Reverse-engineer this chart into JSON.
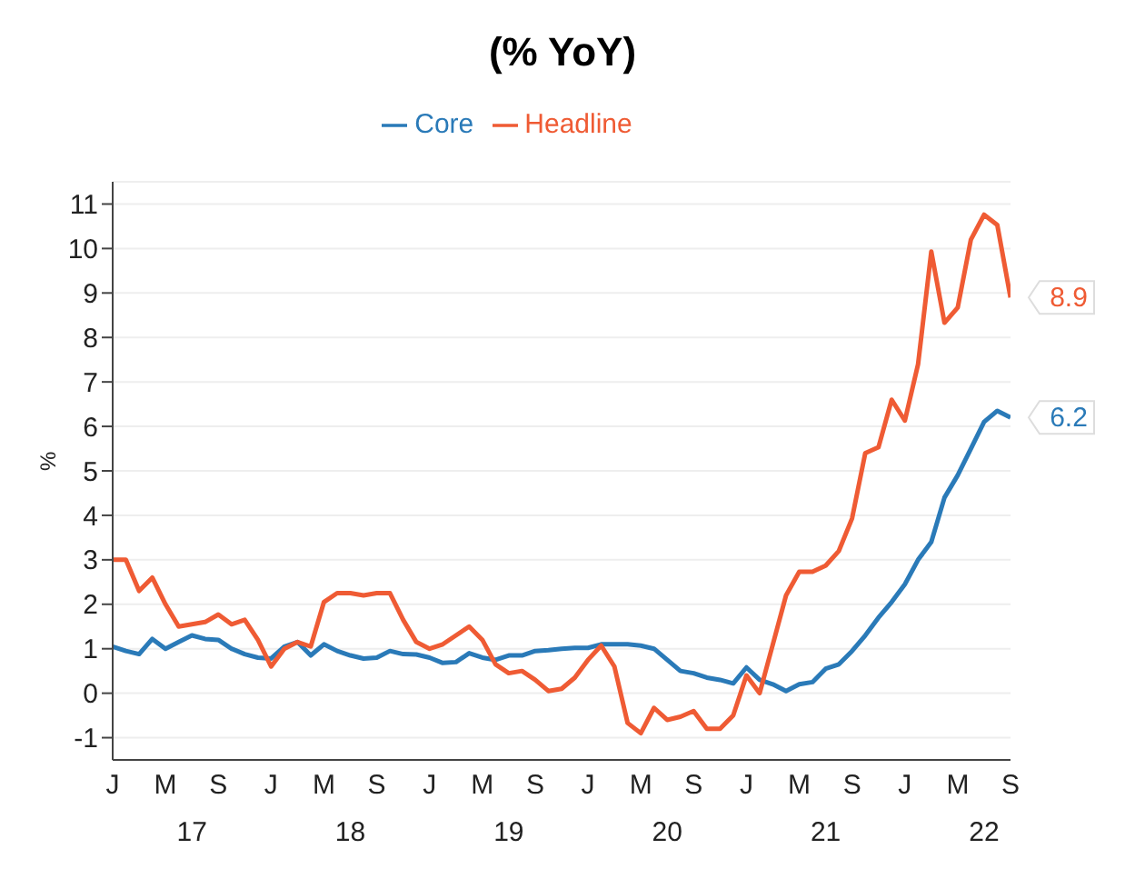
{
  "chart_data": {
    "type": "line",
    "title": "(% YoY)",
    "ylabel": "%",
    "categories": [
      "J",
      null,
      null,
      null,
      "M",
      null,
      null,
      null,
      "S",
      null,
      null,
      null,
      "J",
      null,
      null,
      null,
      "M",
      null,
      null,
      null,
      "S",
      null,
      null,
      null,
      "J",
      null,
      null,
      null,
      "M",
      null,
      null,
      null,
      "S",
      null,
      null,
      null,
      "J",
      null,
      null,
      null,
      "M",
      null,
      null,
      null,
      "S",
      null,
      null,
      null,
      "J",
      null,
      null,
      null,
      "M",
      null,
      null,
      null,
      "S",
      null,
      null,
      null,
      "J",
      null,
      null,
      null,
      "M",
      null,
      null,
      null,
      "S"
    ],
    "series": [
      {
        "name": "Core",
        "color": "#2a7ab8",
        "values": [
          1.05,
          0.95,
          0.88,
          1.22,
          1.0,
          1.15,
          1.3,
          1.22,
          1.2,
          1.0,
          0.88,
          0.8,
          0.78,
          1.05,
          1.15,
          0.85,
          1.1,
          0.95,
          0.85,
          0.78,
          0.8,
          0.95,
          0.88,
          0.87,
          0.8,
          0.68,
          0.7,
          0.9,
          0.8,
          0.75,
          0.85,
          0.85,
          0.95,
          0.97,
          1.0,
          1.02,
          1.02,
          1.1,
          1.1,
          1.1,
          1.07,
          1.0,
          0.75,
          0.5,
          0.45,
          0.35,
          0.3,
          0.22,
          0.58,
          0.3,
          0.2,
          0.05,
          0.2,
          0.25,
          0.55,
          0.65,
          0.95,
          1.3,
          1.7,
          2.05,
          2.45,
          3.0,
          3.4,
          4.4,
          4.9,
          5.5,
          6.1,
          6.35,
          6.2
        ],
        "value_labels": [
          null,
          null,
          null,
          null,
          null,
          null,
          null,
          null,
          null,
          null,
          null,
          null,
          null,
          null,
          null,
          null,
          null,
          null,
          null,
          null,
          null,
          null,
          null,
          null,
          null,
          null,
          null,
          null,
          null,
          null,
          null,
          null,
          null,
          null,
          null,
          null,
          null,
          null,
          null,
          null,
          null,
          null,
          null,
          null,
          null,
          null,
          null,
          null,
          null,
          null,
          null,
          null,
          null,
          null,
          null,
          null,
          null,
          null,
          null,
          null,
          null,
          null,
          null,
          null,
          null,
          null,
          null,
          null,
          "6.2"
        ]
      },
      {
        "name": "Headline",
        "color": "#ef5b34",
        "values": [
          3.0,
          3.0,
          2.3,
          2.6,
          2.0,
          1.5,
          1.55,
          1.6,
          1.77,
          1.55,
          1.65,
          1.2,
          0.6,
          1.0,
          1.15,
          1.05,
          2.05,
          2.25,
          2.25,
          2.2,
          2.25,
          2.25,
          1.65,
          1.15,
          1.0,
          1.1,
          1.3,
          1.5,
          1.2,
          0.65,
          0.45,
          0.5,
          0.3,
          0.05,
          0.1,
          0.35,
          0.75,
          1.07,
          0.6,
          -0.67,
          -0.9,
          -0.33,
          -0.6,
          -0.53,
          -0.4,
          -0.8,
          -0.8,
          -0.5,
          0.4,
          0.0,
          1.1,
          2.2,
          2.73,
          2.73,
          2.87,
          3.2,
          3.93,
          5.4,
          5.53,
          6.6,
          6.13,
          7.4,
          9.93,
          8.33,
          8.67,
          10.2,
          10.76,
          10.53,
          8.9
        ],
        "value_labels": [
          null,
          null,
          null,
          null,
          null,
          null,
          null,
          null,
          null,
          null,
          null,
          null,
          null,
          null,
          null,
          null,
          null,
          null,
          null,
          null,
          null,
          null,
          null,
          null,
          null,
          null,
          null,
          null,
          null,
          null,
          null,
          null,
          null,
          null,
          null,
          null,
          null,
          null,
          null,
          null,
          null,
          null,
          null,
          null,
          null,
          null,
          null,
          null,
          null,
          null,
          null,
          null,
          null,
          null,
          null,
          null,
          null,
          null,
          null,
          null,
          null,
          null,
          null,
          null,
          null,
          null,
          null,
          null,
          "8.9"
        ]
      }
    ],
    "annotations": [
      "17",
      "18",
      "19",
      "20",
      "21",
      "22"
    ],
    "ylim": [
      -1.5,
      11.5
    ],
    "yticks": [
      -1,
      0,
      1,
      2,
      3,
      4,
      5,
      6,
      7,
      8,
      9,
      10,
      11
    ],
    "grid": "y",
    "legend": "top",
    "marker": "none",
    "line_style": "solid"
  }
}
